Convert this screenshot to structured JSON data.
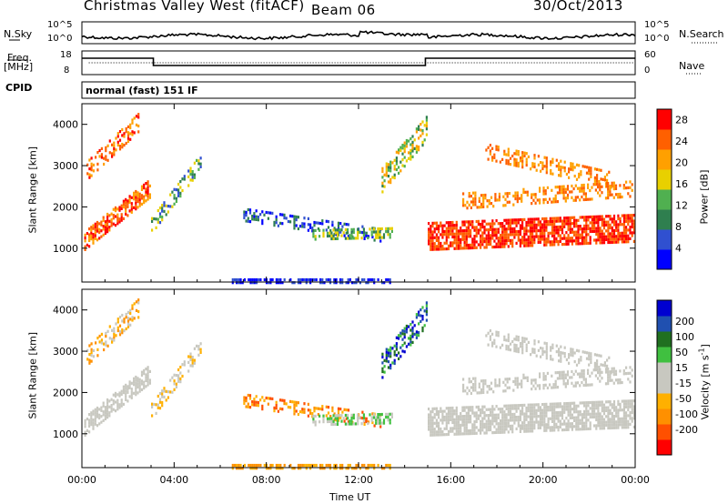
{
  "header": {
    "station": "Christmas Valley West (fitACF)",
    "beam": "Beam 06",
    "date": "30/Oct/2013"
  },
  "cpid_label": "CPID",
  "cpid_text": "normal (fast) 151 IF",
  "nsky": {
    "label": "N.Sky",
    "ticks": [
      "10^5",
      "10^0"
    ]
  },
  "nsearch": {
    "label": "N.Search",
    "ticks": [
      "10^5",
      "10^0"
    ]
  },
  "freq": {
    "label_line1": "Freq.",
    "label_line2": "[MHz]",
    "ticks": [
      "18",
      "8"
    ]
  },
  "nave": {
    "label": "Nave",
    "ticks": [
      "60",
      "0"
    ]
  },
  "colors": {
    "power": [
      "#0000ff",
      "#3050d0",
      "#2f7f4f",
      "#50b050",
      "#e8d000",
      "#ffa000",
      "#ff6000",
      "#ff0000"
    ],
    "velocity": [
      "#ff0000",
      "#ff5000",
      "#ff9000",
      "#ffb000",
      "#c8c8c0",
      "#c8c8c0",
      "#40c040",
      "#207020",
      "#2050b0",
      "#0000d0"
    ]
  },
  "chart_data": [
    {
      "type": "heatmap",
      "name": "Power",
      "ylabel": "Slant Range [km]",
      "xlim": [
        "00:00",
        "24:00"
      ],
      "ylim": [
        180,
        4500
      ],
      "x_ticks": [
        "00:00",
        "04:00",
        "08:00",
        "12:00",
        "16:00",
        "20:00",
        "00:00"
      ],
      "y_ticks": [
        1000,
        2000,
        3000,
        4000
      ],
      "colorbar": {
        "label": "Power [dB]",
        "ticks": [
          4,
          8,
          12,
          16,
          20,
          24,
          28
        ],
        "range": [
          0,
          30
        ]
      }
    },
    {
      "type": "heatmap",
      "name": "Velocity",
      "ylabel": "Slant Range [km]",
      "xlabel": "Time UT",
      "xlim": [
        "00:00",
        "24:00"
      ],
      "ylim": [
        180,
        4500
      ],
      "x_ticks": [
        "00:00",
        "04:00",
        "08:00",
        "12:00",
        "16:00",
        "20:00",
        "00:00"
      ],
      "y_ticks": [
        1000,
        2000,
        3000,
        4000
      ],
      "colorbar": {
        "label": "Velocity [m s^-1]",
        "ticks": [
          200,
          100,
          50,
          15,
          -15,
          -50,
          -100,
          -200
        ]
      }
    }
  ]
}
